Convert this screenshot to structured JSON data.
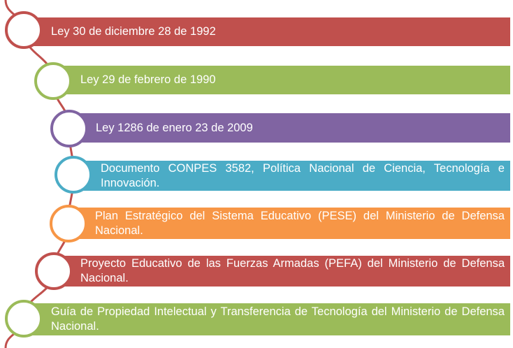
{
  "items": [
    {
      "text": "Ley 30 de diciembre 28 de 1992",
      "color": "#c0504d"
    },
    {
      "text": "Ley 29 de febrero  de 1990",
      "color": "#9bbb59"
    },
    {
      "text": "Ley 1286 de enero 23 de 2009",
      "color": "#8064a2"
    },
    {
      "text": "Documento CONPES  3582, Política Nacional de Ciencia, Tecnología e Innovación.",
      "color": "#4bacc6"
    },
    {
      "text": "Plan Estratégico del Sistema Educativo (PESE) del Ministerio de Defensa Nacional.",
      "color": "#f79646"
    },
    {
      "text": "Proyecto Educativo de las Fuerzas Armadas (PEFA) del Ministerio de Defensa Nacional.",
      "color": "#c0504d"
    },
    {
      "text": "Guía de Propiedad Intelectual y Transferencia de Tecnología del Ministerio de Defensa Nacional.",
      "color": "#9bbb59"
    }
  ],
  "connector_color": "#c0504d"
}
